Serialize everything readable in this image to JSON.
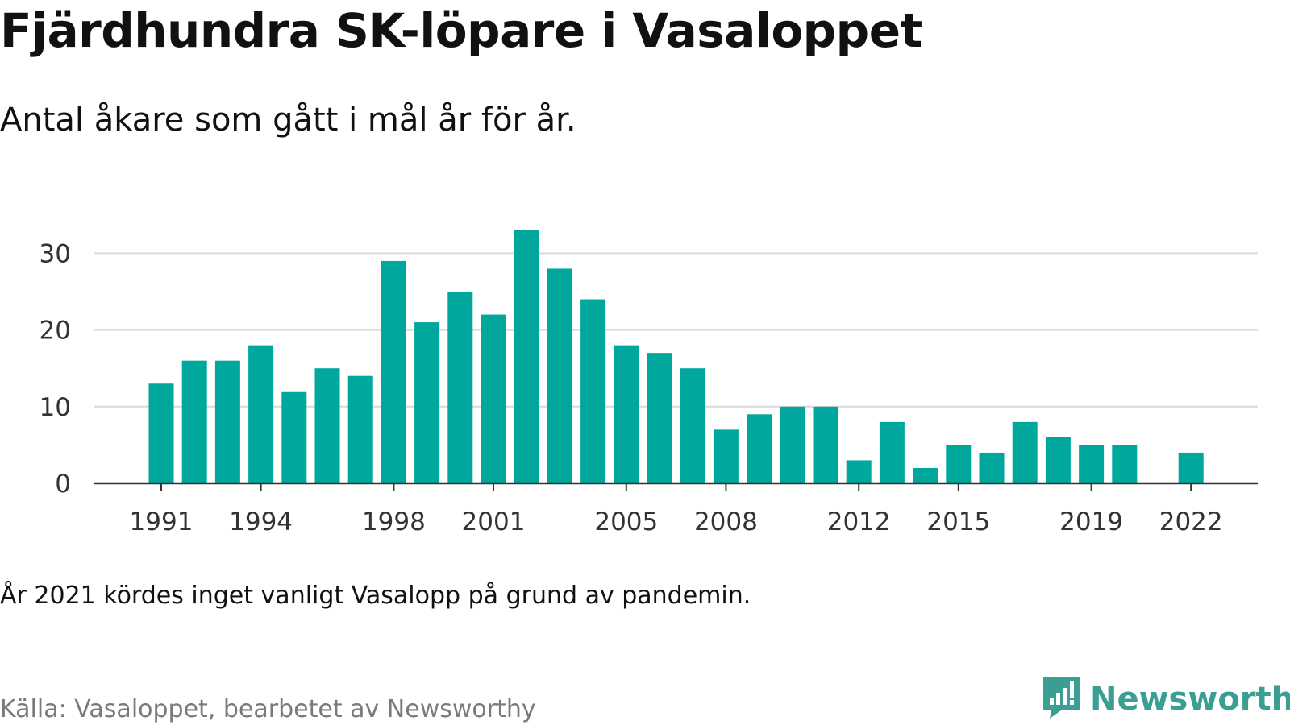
{
  "title": "Fjärdhundra SK-löpare i Vasaloppet",
  "subtitle": "Antal åkare som gått i mål år för år.",
  "note": "År 2021 kördes inget vanligt Vasalopp på grund av pandemin.",
  "source": "Källa: Vasaloppet, bearbetet av Newsworthy",
  "brand": {
    "name": "Newsworthy",
    "icon": "newsworthy-logo-icon",
    "color": "#3a9e92"
  },
  "chart_data": {
    "type": "bar",
    "title": "Fjärdhundra SK-löpare i Vasaloppet",
    "subtitle": "Antal åkare som gått i mål år för år.",
    "xlabel": "",
    "ylabel": "",
    "bar_color": "#00a79d",
    "ylim": [
      0,
      30
    ],
    "yticks": [
      0,
      10,
      20,
      30
    ],
    "xticks": [
      1991,
      1994,
      1998,
      2001,
      2005,
      2008,
      2012,
      2015,
      2019,
      2022
    ],
    "grid": true,
    "categories": [
      1991,
      1992,
      1993,
      1994,
      1995,
      1996,
      1997,
      1998,
      1999,
      2000,
      2001,
      2002,
      2003,
      2004,
      2005,
      2006,
      2007,
      2008,
      2009,
      2010,
      2011,
      2012,
      2013,
      2014,
      2015,
      2016,
      2017,
      2018,
      2019,
      2020,
      2022
    ],
    "values": [
      13,
      16,
      16,
      18,
      12,
      15,
      14,
      29,
      21,
      25,
      22,
      33,
      28,
      24,
      18,
      17,
      15,
      7,
      9,
      10,
      10,
      3,
      8,
      2,
      5,
      4,
      8,
      6,
      5,
      5,
      4
    ]
  }
}
